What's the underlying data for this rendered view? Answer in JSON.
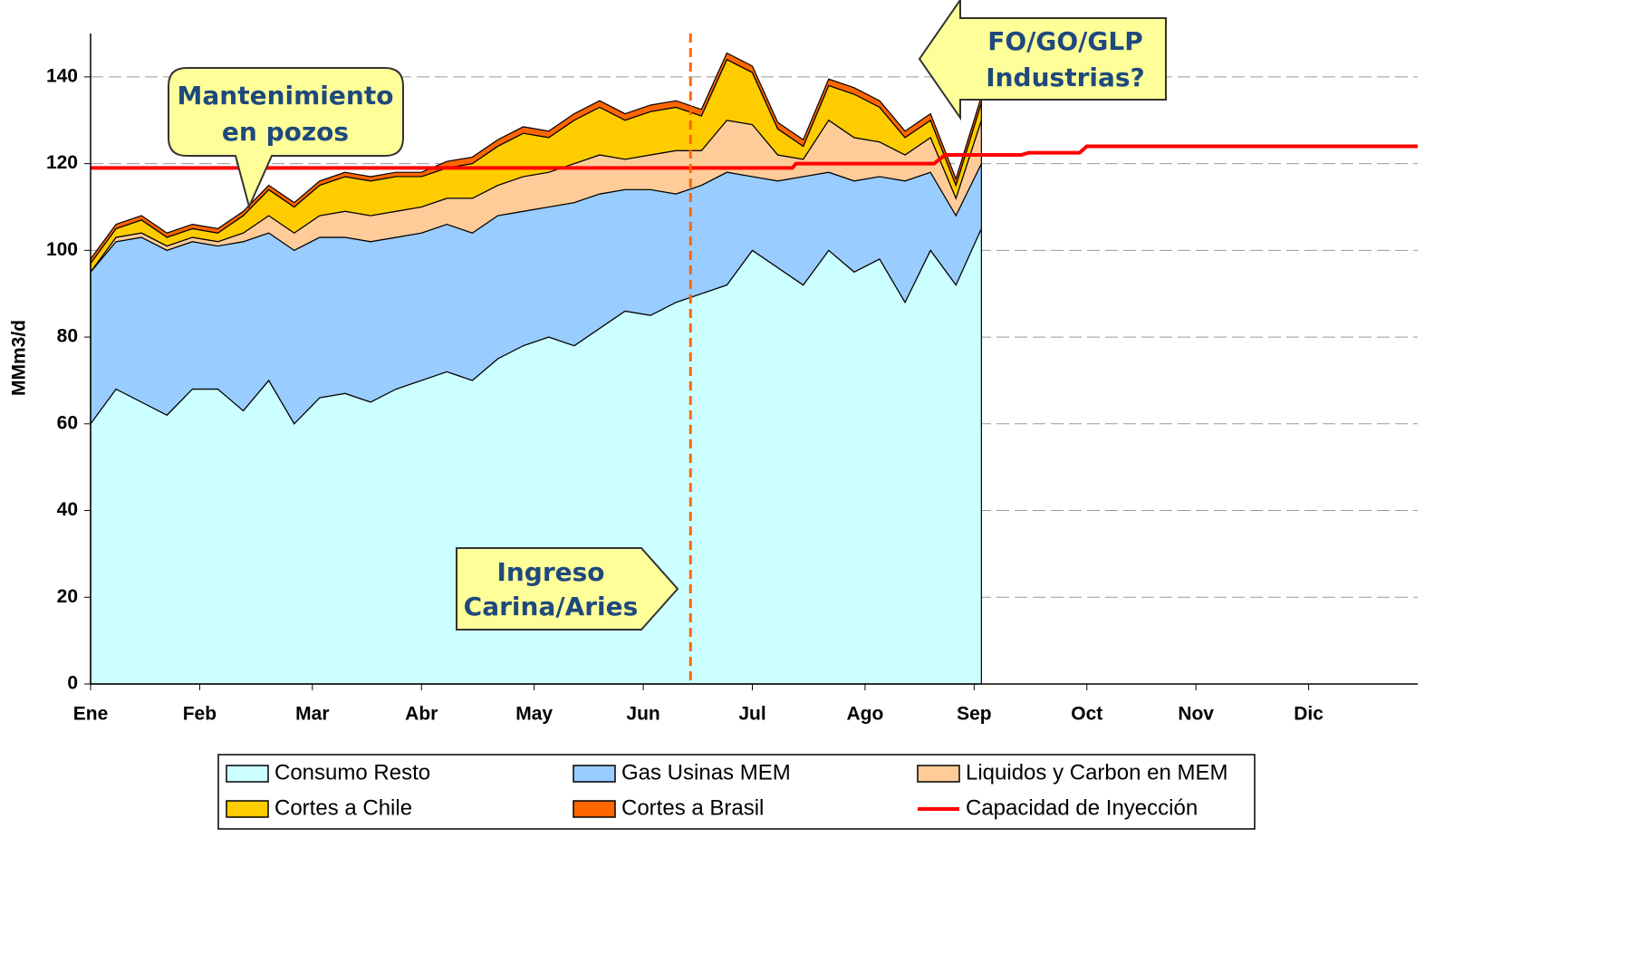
{
  "chart_data": {
    "type": "stacked-area",
    "y_label": "MMm3/d",
    "xlim": [
      0,
      365
    ],
    "xticks": [
      {
        "value": 0,
        "label": "Ene"
      },
      {
        "value": 30,
        "label": "Feb"
      },
      {
        "value": 61,
        "label": "Mar"
      },
      {
        "value": 91,
        "label": "Abr"
      },
      {
        "value": 122,
        "label": "May"
      },
      {
        "value": 152,
        "label": "Jun"
      },
      {
        "value": 182,
        "label": "Jul"
      },
      {
        "value": 213,
        "label": "Ago"
      },
      {
        "value": 243,
        "label": "Sep"
      },
      {
        "value": 274,
        "label": "Oct"
      },
      {
        "value": 304,
        "label": "Nov"
      },
      {
        "value": 335,
        "label": "Dic"
      }
    ],
    "ylim": [
      0,
      150
    ],
    "yticks": [
      0,
      20,
      40,
      60,
      80,
      100,
      120,
      140
    ],
    "grid": true,
    "x": [
      0,
      7,
      14,
      21,
      28,
      35,
      42,
      49,
      56,
      63,
      70,
      77,
      84,
      91,
      98,
      105,
      112,
      119,
      126,
      133,
      140,
      147,
      154,
      161,
      168,
      175,
      182,
      189,
      196,
      203,
      210,
      217,
      224,
      231,
      238,
      245
    ],
    "series": [
      {
        "name": "Consumo Resto",
        "color": "#ccffff",
        "values": [
          60,
          68,
          65,
          62,
          68,
          68,
          63,
          70,
          60,
          66,
          67,
          65,
          68,
          70,
          72,
          70,
          75,
          78,
          80,
          78,
          82,
          86,
          85,
          88,
          90,
          92,
          100,
          96,
          92,
          100,
          95,
          98,
          88,
          100,
          92,
          105
        ]
      },
      {
        "name": "Gas Usinas MEM",
        "color": "#99ccff",
        "values": [
          35,
          34,
          38,
          38,
          34,
          33,
          39,
          34,
          40,
          37,
          36,
          37,
          35,
          34,
          34,
          34,
          33,
          31,
          30,
          33,
          31,
          28,
          29,
          25,
          25,
          26,
          17,
          20,
          25,
          18,
          21,
          19,
          28,
          18,
          16,
          15
        ]
      },
      {
        "name": "Liquidos y Carbon en MEM",
        "color": "#ffcc99",
        "values": [
          0,
          1,
          1,
          1,
          1,
          1,
          2,
          4,
          4,
          5,
          6,
          6,
          6,
          6,
          6,
          8,
          7,
          8,
          8,
          9,
          9,
          7,
          8,
          10,
          8,
          12,
          12,
          6,
          4,
          12,
          10,
          8,
          6,
          8,
          4,
          10
        ]
      },
      {
        "name": "Cortes a Chile",
        "color": "#ffcc00",
        "values": [
          2,
          2,
          3,
          2,
          2,
          2,
          4,
          6,
          6,
          7,
          8,
          8,
          8,
          7,
          7,
          8,
          9,
          10,
          8,
          10,
          11,
          9,
          10,
          10,
          8,
          14,
          12,
          6,
          3,
          8,
          10,
          8,
          4,
          4,
          3,
          4
        ]
      },
      {
        "name": "Cortes a Brasil",
        "color": "#ff6600",
        "values": [
          1,
          1,
          1,
          1,
          1,
          1,
          1,
          1,
          1,
          1,
          1,
          1,
          1,
          1,
          1.5,
          1.5,
          1.5,
          1.5,
          1.5,
          1.5,
          1.5,
          1.5,
          1.5,
          1.5,
          1.5,
          1.5,
          1.5,
          1.5,
          1.5,
          1.5,
          1.5,
          1.5,
          1.5,
          1.5,
          1.5,
          1.5
        ]
      }
    ],
    "line": {
      "name": "Capacidad de Inyección",
      "color": "#ff0000",
      "x": [
        0,
        193,
        194,
        232,
        235,
        256,
        258,
        272,
        274,
        365
      ],
      "values": [
        119,
        119,
        120,
        120,
        122,
        122,
        122.5,
        122.5,
        124,
        124
      ]
    },
    "marker_x": 165,
    "annotations": [
      {
        "lines": [
          "Mantenimiento",
          "en pozos"
        ]
      },
      {
        "lines": [
          "FO/GO/GLP",
          "Industrias?"
        ]
      },
      {
        "lines": [
          "Ingreso",
          "Carina/Aries"
        ]
      }
    ]
  }
}
